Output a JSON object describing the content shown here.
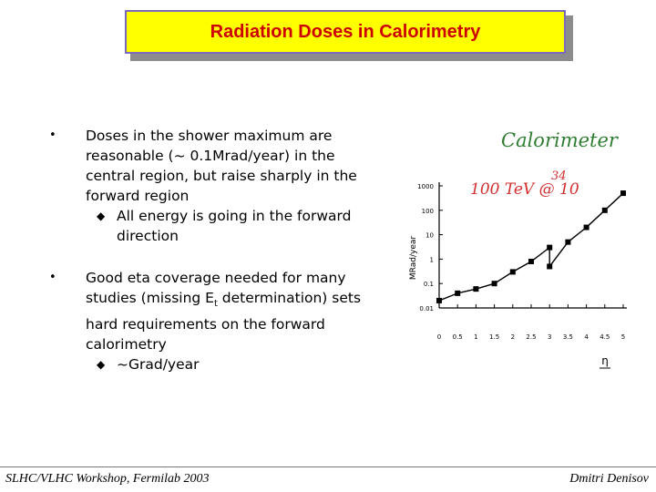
{
  "slide": {
    "title": "Radiation Doses in Calorimetry",
    "bullets": [
      {
        "text": "Doses in the shower maximum are reasonable (~ 0.1Mrad/year) in the central region, but raise sharply in the forward region",
        "sub": "All energy is going in the forward direction"
      },
      {
        "text_before": "Good eta coverage needed for many studies (missing E",
        "text_sub": "t",
        "text_after": " determination) sets hard requirements on the forward calorimetry",
        "sub": "~Grad/year"
      }
    ],
    "footer_left": "SLHC/VLHC Workshop, Fermilab 2003",
    "footer_right": "Dmitri Denisov",
    "bullet_glyph": "•",
    "sub_glyph": "◆"
  },
  "chart_data": {
    "type": "line",
    "annotation_title": "Calorimeter",
    "annotation_cond": "100 TeV @ 10",
    "annotation_cond_exp": "34",
    "ylabel": "MRad/year",
    "xlabel": "η",
    "yscale": "log",
    "ylim": [
      0.01,
      1000
    ],
    "y_ticks": [
      "1000",
      "100",
      "10",
      "1",
      "0.1",
      "0.01"
    ],
    "x_ticks": [
      "0",
      "0.5",
      "1",
      "1.5",
      "2",
      "2.5",
      "3",
      "3.5",
      "4",
      "4.5",
      "5"
    ],
    "xlim": [
      0,
      5
    ],
    "series": [
      {
        "x": [
          0,
          0.5,
          1.0,
          1.5,
          2.0,
          2.5,
          3.0,
          3.0,
          3.5,
          4.0,
          4.5,
          5.0
        ],
        "y": [
          0.02,
          0.04,
          0.06,
          0.1,
          0.3,
          0.8,
          3,
          0.5,
          5,
          20,
          100,
          500
        ]
      }
    ]
  }
}
